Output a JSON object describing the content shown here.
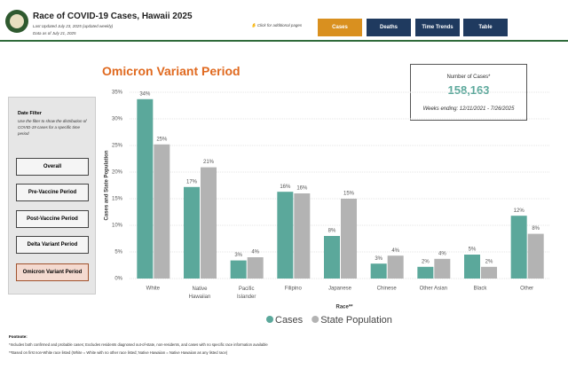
{
  "header": {
    "title": "Race of COVID-19 Cases, Hawaii 2025",
    "updated": "Last Updated July 23, 2025 (updated weekly)",
    "data_as_of": "Data as of July 21, 2025",
    "click_hint": "Click for additional pages"
  },
  "nav": [
    "Cases",
    "Deaths",
    "Time Trends",
    "Table"
  ],
  "filter": {
    "title": "Date Filter",
    "description": "Use the filter to show the distribution of COVID-19 cases for a specific time period",
    "options": [
      "Overall",
      "Pre-Vaccine Period",
      "Post-Vaccine Period",
      "Delta Variant Period",
      "Omicron Variant Period"
    ]
  },
  "kpi": {
    "label": "Number of Cases*",
    "value": "158,163",
    "weeks": "Weeks ending: 12/11/2021 - 7/26/2025"
  },
  "chart_data": {
    "type": "bar",
    "title": "Omicron Variant Period",
    "x_label": "Race**",
    "y_label": "Cases and State Population",
    "categories": [
      "White",
      "Native Hawaiian",
      "Pacific Islander",
      "Filipino",
      "Japanese",
      "Chinese",
      "Other Asian",
      "Black",
      "Other"
    ],
    "series": [
      {
        "name": "Cases",
        "color": "#5ba89b",
        "values": [
          33.7,
          17.2,
          3.4,
          16.3,
          8.0,
          2.8,
          2.2,
          4.5,
          11.8
        ],
        "value_labels": [
          "34%",
          "17%",
          "3%",
          "16%",
          "8%",
          "3%",
          "2%",
          "5%",
          "12%"
        ]
      },
      {
        "name": "State Population",
        "color": "#b3b3b3",
        "values": [
          25.2,
          20.9,
          4.0,
          16.0,
          15.0,
          4.3,
          3.7,
          2.2,
          8.4
        ],
        "value_labels": [
          "25%",
          "21%",
          "4%",
          "16%",
          "15%",
          "4%",
          "4%",
          "2%",
          "8%"
        ]
      }
    ],
    "ylim": [
      0,
      35
    ],
    "yticks": [
      {
        "value": 0,
        "label": "0%"
      },
      {
        "value": 5,
        "label": "5%"
      },
      {
        "value": 10,
        "label": "10%"
      },
      {
        "value": 15,
        "label": "15%"
      },
      {
        "value": 20,
        "label": "20%"
      },
      {
        "value": 25,
        "label": "25%"
      },
      {
        "value": 30,
        "label": "30%"
      },
      {
        "value": 35,
        "label": "35%"
      }
    ],
    "grid": true,
    "legend": "bottom"
  },
  "footnote": {
    "title": "Footnote:",
    "notes": [
      "*Includes both confirmed and probable cases; Excludes residents diagnosed out-of-state, non-residents, and cases with no specific race information available",
      "**Based on first non-White race listed (White = White with no other race listed; Native Hawaiian = Native Hawaiian as any listed race)"
    ]
  }
}
